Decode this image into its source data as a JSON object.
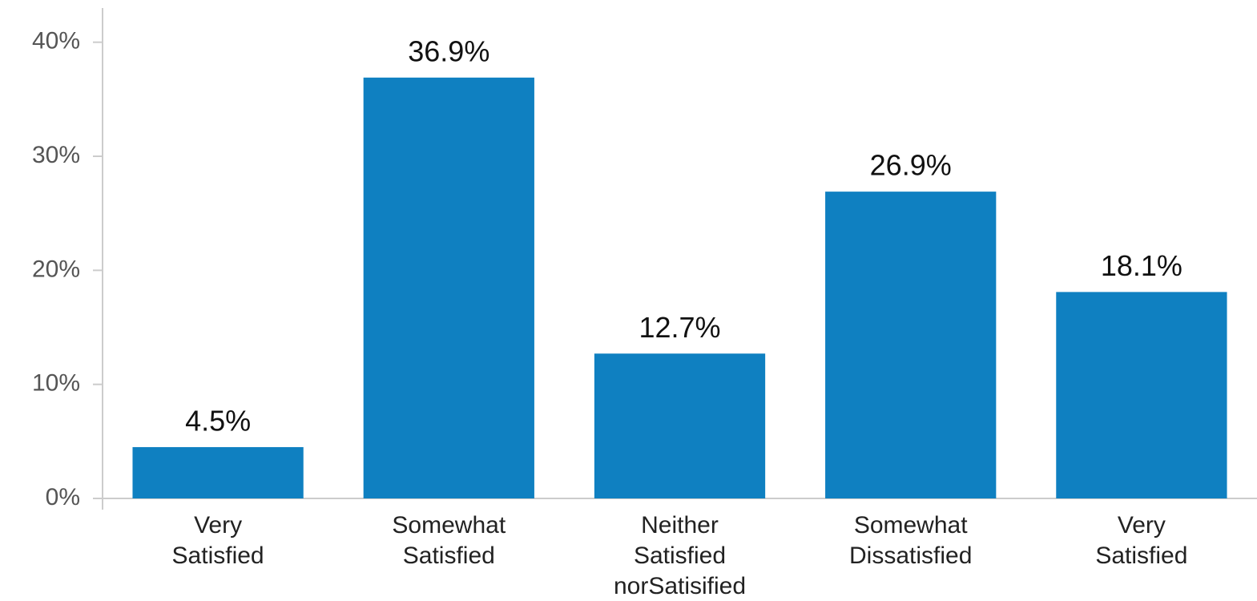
{
  "chart_data": {
    "type": "bar",
    "categories": [
      [
        "Very",
        "Satisfied"
      ],
      [
        "Somewhat",
        "Satisfied"
      ],
      [
        "Neither",
        "Satisfied",
        "norSatisified"
      ],
      [
        "Somewhat",
        "Dissatisfied"
      ],
      [
        "Very",
        "Satisfied"
      ]
    ],
    "values": [
      4.5,
      36.9,
      12.7,
      26.9,
      18.1
    ],
    "value_labels": [
      "4.5%",
      "36.9%",
      "12.7%",
      "26.9%",
      "18.1%"
    ],
    "color": "#0f80c1",
    "ylim": [
      0,
      43
    ],
    "yticks": [
      {
        "value": 0,
        "label": "0%"
      },
      {
        "value": 10,
        "label": "10%"
      },
      {
        "value": 20,
        "label": "20%"
      },
      {
        "value": 30,
        "label": "30%"
      },
      {
        "value": 40,
        "label": "40%"
      }
    ],
    "grid": false
  }
}
